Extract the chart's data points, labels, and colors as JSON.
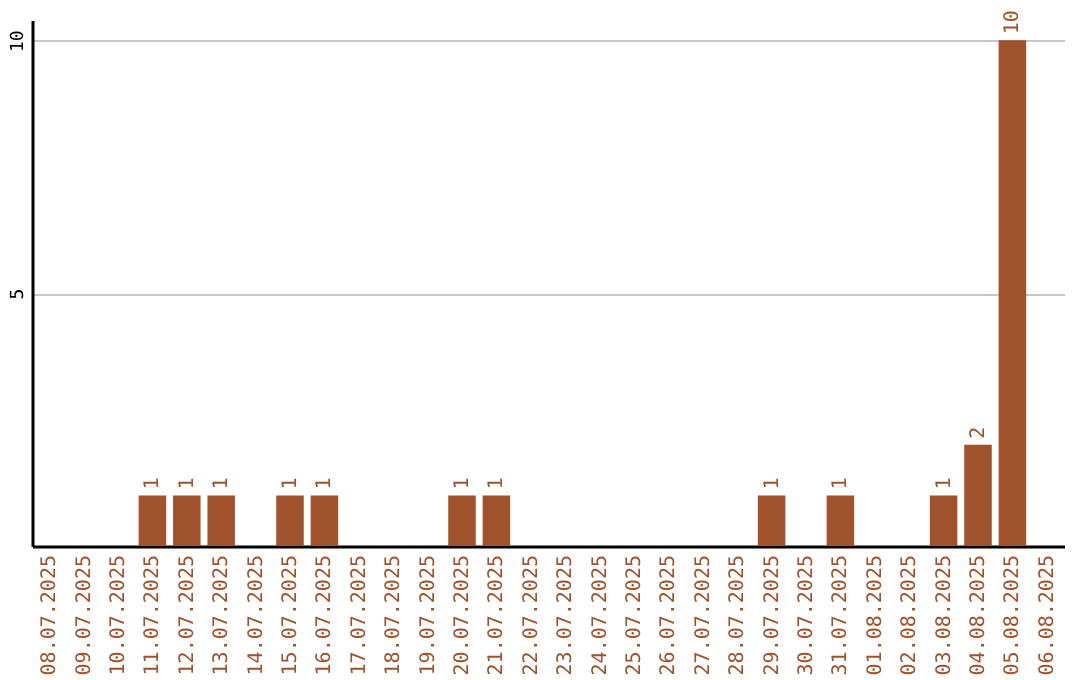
{
  "chart_data": {
    "type": "bar",
    "categories": [
      "08.07.2025",
      "09.07.2025",
      "10.07.2025",
      "11.07.2025",
      "12.07.2025",
      "13.07.2025",
      "14.07.2025",
      "15.07.2025",
      "16.07.2025",
      "17.07.2025",
      "18.07.2025",
      "19.07.2025",
      "20.07.2025",
      "21.07.2025",
      "22.07.2025",
      "23.07.2025",
      "24.07.2025",
      "25.07.2025",
      "26.07.2025",
      "27.07.2025",
      "28.07.2025",
      "29.07.2025",
      "30.07.2025",
      "31.07.2025",
      "01.08.2025",
      "02.08.2025",
      "03.08.2025",
      "04.08.2025",
      "05.08.2025",
      "06.08.2025"
    ],
    "values": [
      0,
      0,
      0,
      1,
      1,
      1,
      0,
      1,
      1,
      0,
      0,
      0,
      1,
      1,
      0,
      0,
      0,
      0,
      0,
      0,
      0,
      1,
      0,
      1,
      0,
      0,
      1,
      2,
      10,
      0
    ],
    "value_labels": [
      null,
      null,
      null,
      "1",
      "1",
      "1",
      null,
      "1",
      "1",
      null,
      null,
      null,
      "1",
      "1",
      null,
      null,
      null,
      null,
      null,
      null,
      null,
      "1",
      null,
      "1",
      null,
      null,
      "1",
      "2",
      "10",
      null
    ],
    "color": "#a0522d",
    "ylim": [
      0,
      10.4
    ],
    "yticks": [
      5,
      10
    ],
    "grid": "y"
  }
}
